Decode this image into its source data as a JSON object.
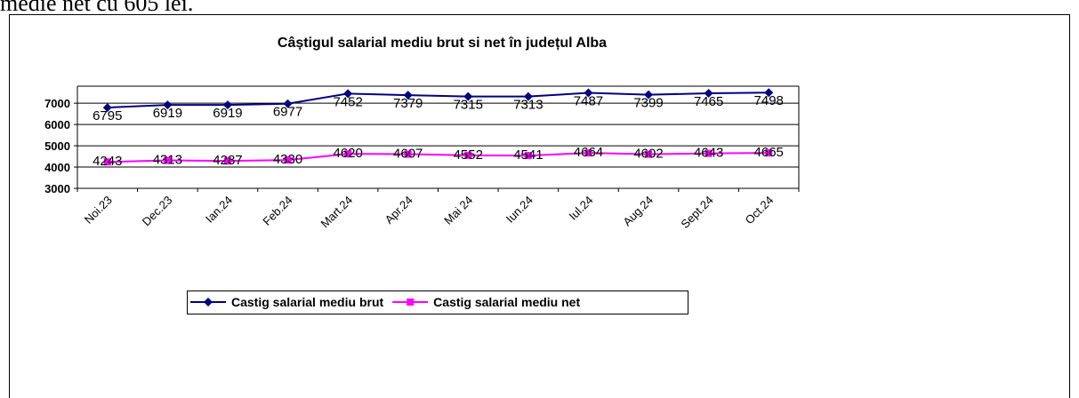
{
  "document_text": "medie net cu 605 lei.",
  "chart_data": {
    "type": "line",
    "title": "Câștigul salarial mediu brut si net în județul Alba",
    "categories": [
      "Noi.23",
      "Dec.23",
      "Ian.24",
      "Feb.24",
      "Mart.24",
      "Apr.24",
      "Mai 24",
      "Iun.24",
      "Iul.24",
      "Aug.24",
      "Sept.24",
      "Oct.24"
    ],
    "series": [
      {
        "name": "Castig salarial mediu brut",
        "color": "#000080",
        "marker": "diamond",
        "values": [
          6795,
          6919,
          6919,
          6977,
          7452,
          7379,
          7315,
          7313,
          7487,
          7399,
          7465,
          7498
        ]
      },
      {
        "name": "Castig salarial mediu net",
        "color": "#ff00ff",
        "marker": "square",
        "values": [
          4243,
          4313,
          4287,
          4330,
          4620,
          4607,
          4552,
          4541,
          4664,
          4602,
          4643,
          4665
        ]
      }
    ],
    "ylim": [
      3000,
      7800
    ],
    "yticks": [
      3000,
      4000,
      5000,
      6000,
      7000
    ],
    "grid": true,
    "legend": "bottom"
  }
}
